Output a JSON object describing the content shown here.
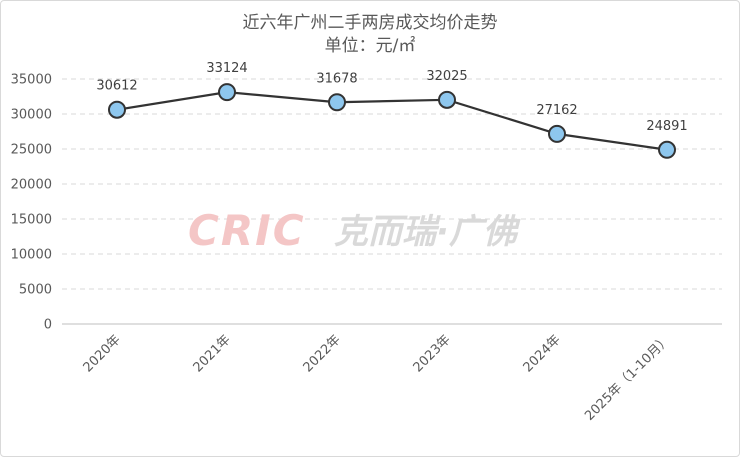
{
  "title": "近六年广州二手两房成交均价走势",
  "subtitle": "单位：元/㎡",
  "watermark": {
    "brand": "CRIC",
    "text": "克而瑞·广佛",
    "brand_color": "#f4c6c6",
    "text_color": "#d9d9d9"
  },
  "colors": {
    "line": "#333333",
    "marker_fill": "#8ec7ee",
    "marker_stroke": "#333333",
    "grid": "#d9d9d9",
    "axis": "#bfbfbf"
  },
  "chart_data": {
    "type": "line",
    "categories": [
      "2020年",
      "2021年",
      "2022年",
      "2023年",
      "2024年",
      "2025年（1-10月）"
    ],
    "values": [
      30612,
      33124,
      31678,
      32025,
      27162,
      24891
    ],
    "ylim": [
      0,
      35000
    ],
    "yticks": [
      0,
      5000,
      10000,
      15000,
      20000,
      25000,
      30000,
      35000
    ],
    "grid": true,
    "legend": "none",
    "data_labels": true
  }
}
